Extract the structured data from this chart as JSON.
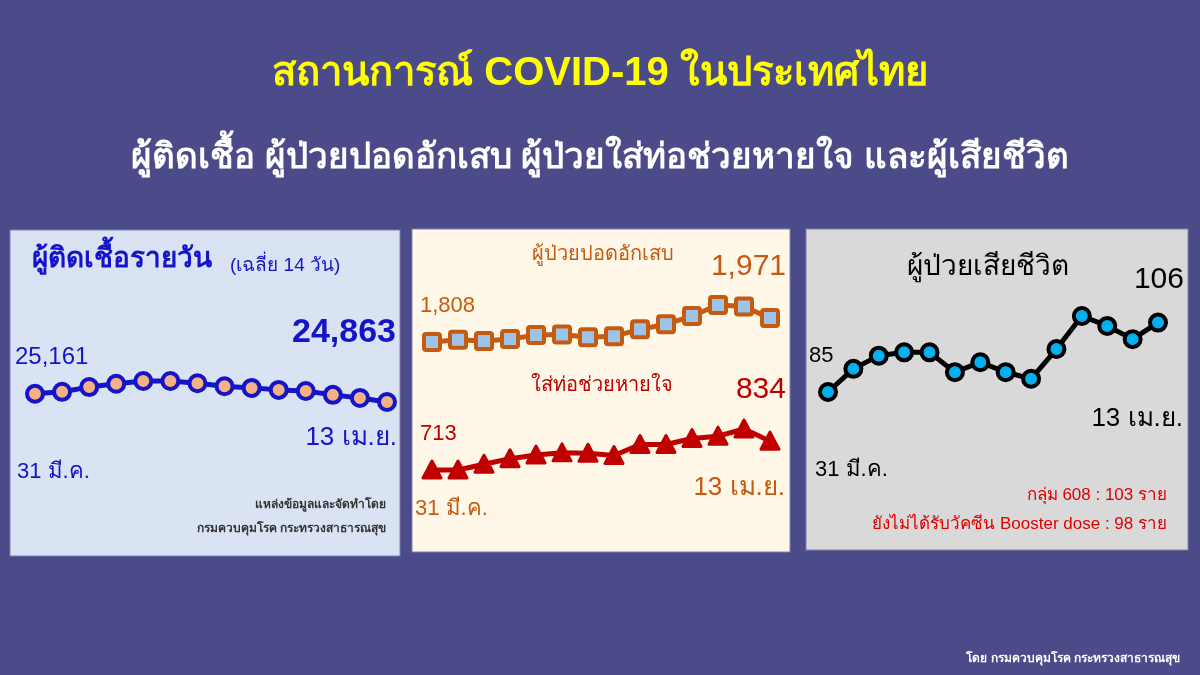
{
  "chart_data": [
    {
      "type": "other",
      "title": "สถานการณ์ COVID-19 ในประเทศไทย",
      "subtitle": "ผู้ติดเชื้อ ผู้ป่วยปอดอักเสบ ผู้ป่วยใส่ท่อช่วยหายใจ และผู้เสียชีวิต",
      "annotations": [
        "โดย กรมควบคุมโรค กระทรวงสาธารณสุข"
      ]
    },
    {
      "type": "line",
      "title": "ผู้ติดเชื้อรายวัน",
      "subtitle": "(เฉลี่ย 14 วัน)",
      "categories": [
        null,
        null,
        null,
        null,
        null,
        null,
        null,
        null,
        null,
        null,
        null,
        null,
        null,
        null
      ],
      "marker": "circle",
      "series": [
        {
          "color": "#1414c8",
          "values": [
            25161,
            25230,
            25400,
            25520,
            25620,
            25620,
            25540,
            25430,
            25370,
            25300,
            25260,
            25120,
            25010,
            24863
          ],
          "value_labels": [
            "25,161",
            null,
            null,
            null,
            null,
            null,
            null,
            null,
            null,
            null,
            null,
            null,
            null,
            "24,863"
          ]
        }
      ],
      "annotations": [
        "31 มี.ค.",
        "13 เม.ย.",
        "แหล่งข้อมูลและจัดทำโดย",
        "กรมควบคุมโรค กระทรวงสาธารณสุข"
      ]
    },
    {
      "type": "line",
      "categories": [
        null,
        null,
        null,
        null,
        null,
        null,
        null,
        null,
        null,
        null,
        null,
        null,
        null,
        null
      ],
      "marker": "square",
      "series": [
        {
          "name": "ผู้ป่วยปอดอักเสบ",
          "color": "#c55a11",
          "values": [
            1808,
            1824,
            1815,
            1829,
            1855,
            1859,
            1841,
            1848,
            1894,
            1929,
            1985,
            2060,
            2050,
            1971
          ],
          "value_labels": [
            "1,808",
            null,
            null,
            null,
            null,
            null,
            null,
            null,
            null,
            null,
            null,
            null,
            null,
            "1,971"
          ]
        }
      ]
    },
    {
      "type": "line",
      "categories": [
        null,
        null,
        null,
        null,
        null,
        null,
        null,
        null,
        null,
        null,
        null,
        null,
        null,
        null
      ],
      "marker": "triangle",
      "series": [
        {
          "name": "ใส่ท่อช่วยหายใจ",
          "color": "#c00000",
          "values": [
            713,
            713,
            737,
            760,
            776,
            785,
            783,
            774,
            820,
            820,
            845,
            855,
            885,
            834
          ],
          "value_labels": [
            "713",
            null,
            null,
            null,
            null,
            null,
            null,
            null,
            null,
            null,
            null,
            null,
            null,
            "834"
          ]
        }
      ],
      "annotations": [
        "31 มี.ค.",
        "13 เม.ย."
      ]
    },
    {
      "type": "line",
      "title": "ผู้ป่วยเสียชีวิต",
      "categories": [
        null,
        null,
        null,
        null,
        null,
        null,
        null,
        null,
        null,
        null,
        null,
        null,
        null,
        null
      ],
      "marker": "circle",
      "series": [
        {
          "color": "#000000",
          "values": [
            85,
            92,
            96,
            97,
            97,
            91,
            94,
            91,
            89,
            98,
            108,
            105,
            101,
            106
          ],
          "value_labels": [
            "85",
            null,
            null,
            null,
            null,
            null,
            null,
            null,
            null,
            null,
            null,
            null,
            null,
            "106"
          ]
        }
      ],
      "annotations": [
        "31 มี.ค.",
        "13 เม.ย.",
        "กลุ่ม 608 : 103 ราย",
        "ยังไม่ได้รับวัคซีน Booster dose : 98 ราย"
      ]
    }
  ]
}
